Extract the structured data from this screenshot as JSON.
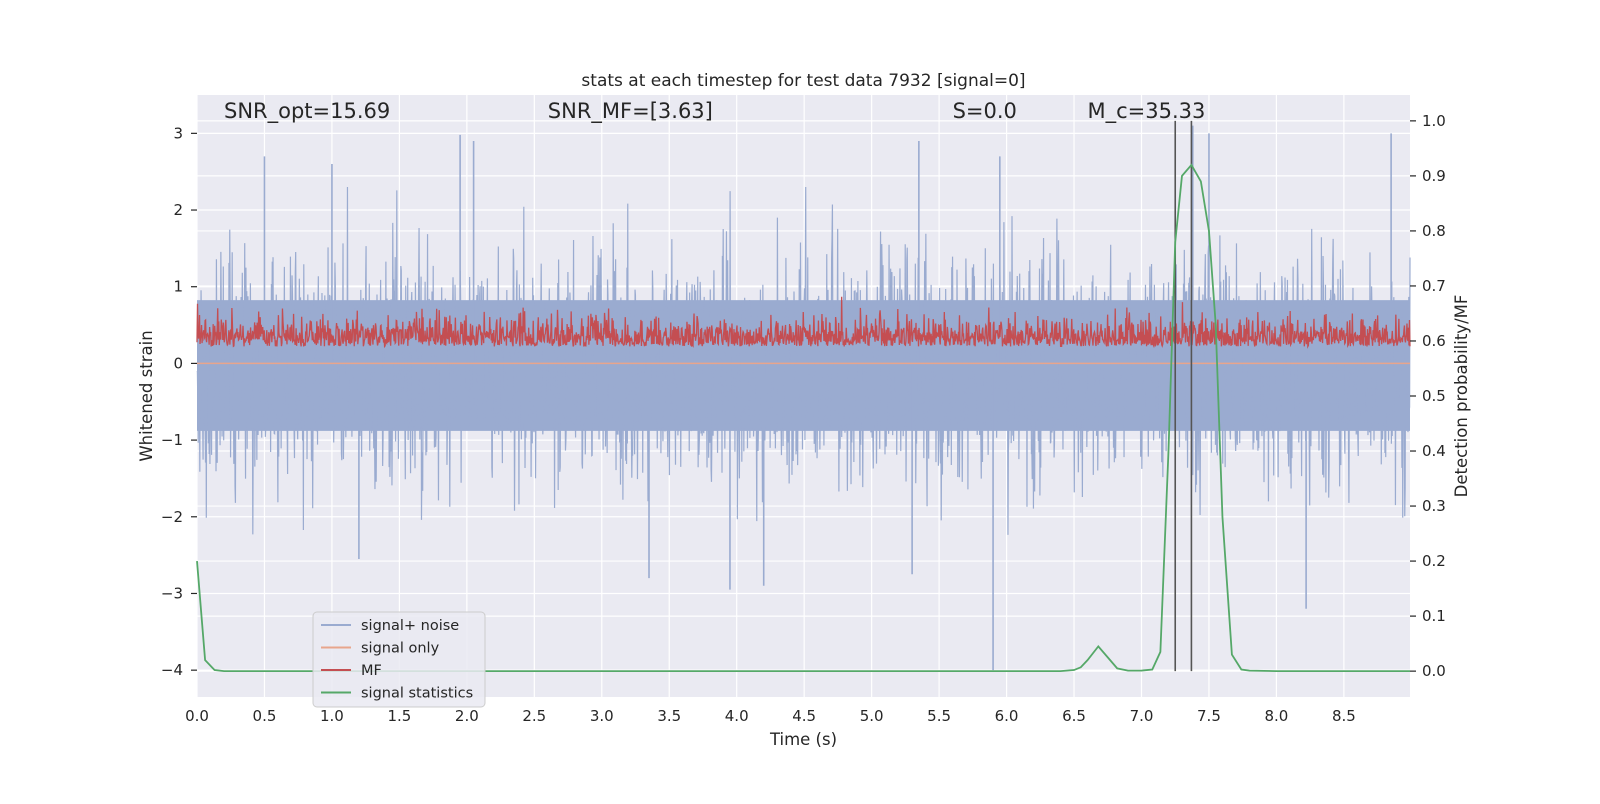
{
  "chart_data": {
    "type": "line",
    "title": "stats at each timestep for test data 7932 [signal=0]",
    "xlabel": "Time (s)",
    "ylabel_left": "Whitened strain",
    "ylabel_right": "Detection probability/MF",
    "xlim": [
      0.0,
      8.99
    ],
    "ylim_left": [
      -4.35,
      3.5
    ],
    "ylim_right": [
      -0.047,
      1.047
    ],
    "x_ticks": [
      "0.0",
      "0.5",
      "1.0",
      "1.5",
      "2.0",
      "2.5",
      "3.0",
      "3.5",
      "4.0",
      "4.5",
      "5.0",
      "5.5",
      "6.0",
      "6.5",
      "7.0",
      "7.5",
      "8.0",
      "8.5"
    ],
    "y_ticks_left": [
      "3",
      "2",
      "1",
      "0",
      "−1",
      "−2",
      "−3",
      "−4"
    ],
    "y_ticks_right": [
      "1.0",
      "0.9",
      "0.8",
      "0.7",
      "0.6",
      "0.5",
      "0.4",
      "0.3",
      "0.2",
      "0.1",
      "0.0"
    ],
    "grid": true,
    "annotations": [
      {
        "id": "snr-opt",
        "text": "SNR_opt=15.69",
        "x": 0.2,
        "y": 3.2,
        "axis": "left"
      },
      {
        "id": "snr-mf",
        "text": "SNR_MF=[3.63]",
        "x": 2.6,
        "y": 3.2,
        "axis": "left"
      },
      {
        "id": "s-stat",
        "text": "S=0.0",
        "x": 5.6,
        "y": 3.2,
        "axis": "left"
      },
      {
        "id": "mc",
        "text": "M_c=35.33",
        "x": 6.6,
        "y": 3.2,
        "axis": "left"
      }
    ],
    "vlines": [
      {
        "x": 7.25,
        "ymin": 0.0,
        "ymax": 1.0,
        "color": "#555555"
      },
      {
        "x": 7.37,
        "ymin": 0.0,
        "ymax": 1.0,
        "color": "#555555"
      }
    ],
    "legend_position": "lower-left",
    "series": [
      {
        "name": "signal+ noise",
        "color": "#9aabd0",
        "axis": "left",
        "style": "noise-band",
        "sample_rate": 2048,
        "envelope_upper_typ": 1.5,
        "envelope_lower_typ": -1.6,
        "peak_spikes": [
          {
            "x": 0.5,
            "y": 2.7
          },
          {
            "x": 1.0,
            "y": 2.6
          },
          {
            "x": 1.95,
            "y": 2.98
          },
          {
            "x": 2.05,
            "y": 2.9
          },
          {
            "x": 5.35,
            "y": 2.9
          },
          {
            "x": 5.95,
            "y": 2.7
          },
          {
            "x": 7.38,
            "y": 3.1
          },
          {
            "x": 7.5,
            "y": 3.0
          },
          {
            "x": 8.85,
            "y": 3.0
          }
        ],
        "trough_spikes": [
          {
            "x": 1.2,
            "y": -2.55
          },
          {
            "x": 3.35,
            "y": -2.8
          },
          {
            "x": 3.95,
            "y": -2.95
          },
          {
            "x": 4.2,
            "y": -2.9
          },
          {
            "x": 5.3,
            "y": -2.75
          },
          {
            "x": 5.9,
            "y": -4.0
          },
          {
            "x": 8.22,
            "y": -3.2
          }
        ]
      },
      {
        "name": "signal only",
        "color": "#e8a58c",
        "axis": "left",
        "x": [
          0.0,
          8.99
        ],
        "y": [
          0.0,
          0.0
        ]
      },
      {
        "name": "MF",
        "color": "#c44e52",
        "axis": "right",
        "style": "noise-band",
        "baseline": 0.6,
        "typical_range": [
          0.58,
          0.66
        ],
        "max": 0.7
      },
      {
        "name": "signal statistics",
        "color": "#55a868",
        "axis": "right",
        "x": [
          0.0,
          0.06,
          0.13,
          0.2,
          0.4,
          1.0,
          2.0,
          3.0,
          4.0,
          5.0,
          6.0,
          6.4,
          6.5,
          6.55,
          6.6,
          6.68,
          6.75,
          6.82,
          6.9,
          7.0,
          7.08,
          7.14,
          7.2,
          7.25,
          7.3,
          7.37,
          7.44,
          7.5,
          7.55,
          7.6,
          7.67,
          7.74,
          7.8,
          8.0,
          8.99
        ],
        "y": [
          0.2,
          0.02,
          0.002,
          0.0,
          0.0,
          0.0,
          0.0,
          0.0,
          0.0,
          0.0,
          0.0,
          0.0,
          0.002,
          0.007,
          0.02,
          0.045,
          0.025,
          0.005,
          0.001,
          0.001,
          0.003,
          0.035,
          0.4,
          0.78,
          0.9,
          0.92,
          0.89,
          0.8,
          0.63,
          0.28,
          0.03,
          0.003,
          0.001,
          0.0,
          0.0
        ]
      }
    ]
  }
}
